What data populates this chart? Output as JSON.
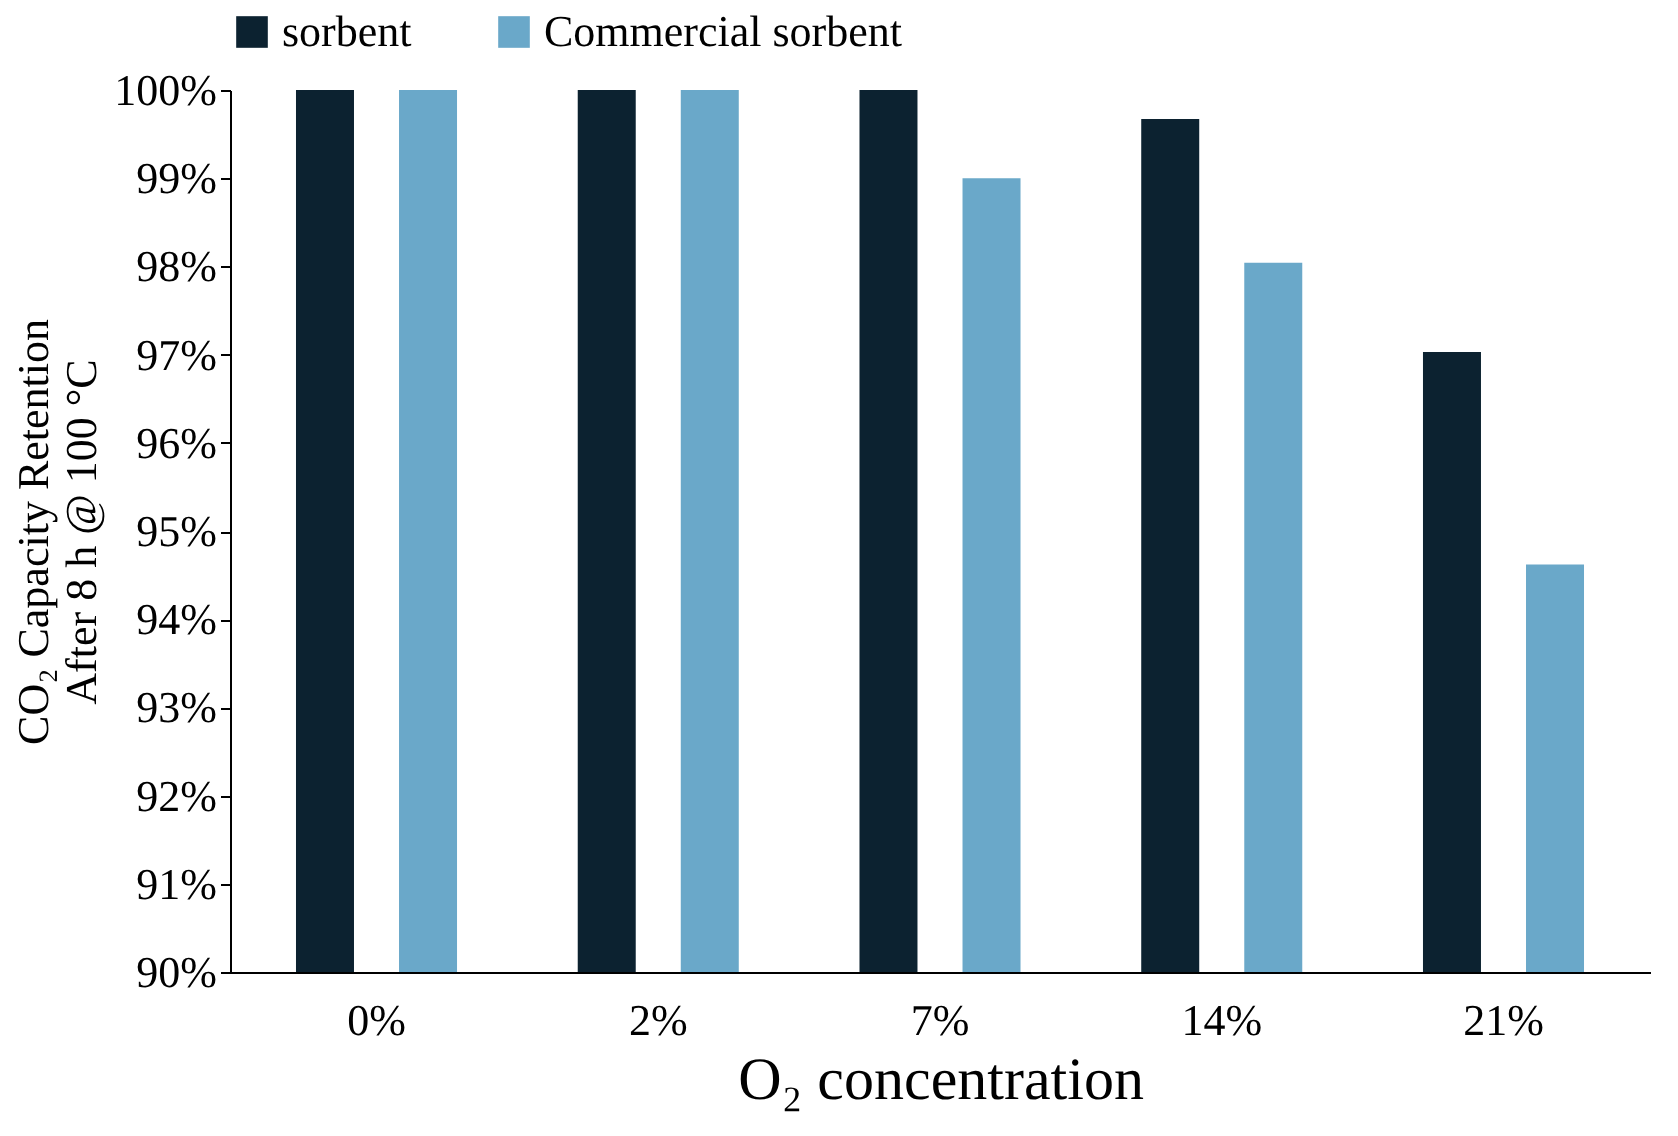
{
  "chart_data": {
    "type": "bar",
    "xlabel": "O₂ concentration",
    "ylabel": "CO₂ Capacity Retention\nAfter 8 h @ 100 °C",
    "categories": [
      "0%",
      "2%",
      "7%",
      "14%",
      "21%"
    ],
    "series": [
      {
        "name": "sorbent",
        "color": "#0c2230",
        "values": [
          100,
          100,
          100,
          99.67,
          97.03
        ]
      },
      {
        "name": "Commercial sorbent",
        "color": "#6aa8c9",
        "values": [
          100,
          100,
          99.0,
          98.04,
          94.62
        ]
      }
    ],
    "ylim": [
      90,
      100
    ],
    "yticks": [
      {
        "value": 90,
        "label": "90%"
      },
      {
        "value": 91,
        "label": "91%"
      },
      {
        "value": 92,
        "label": "92%"
      },
      {
        "value": 93,
        "label": "93%"
      },
      {
        "value": 94,
        "label": "94%"
      },
      {
        "value": 95,
        "label": "95%"
      },
      {
        "value": 96,
        "label": "96%"
      },
      {
        "value": 97,
        "label": "97%"
      },
      {
        "value": 98,
        "label": "98%"
      },
      {
        "value": 99,
        "label": "99%"
      },
      {
        "value": 100,
        "label": "100%"
      }
    ],
    "grid": false,
    "legend": "top"
  }
}
